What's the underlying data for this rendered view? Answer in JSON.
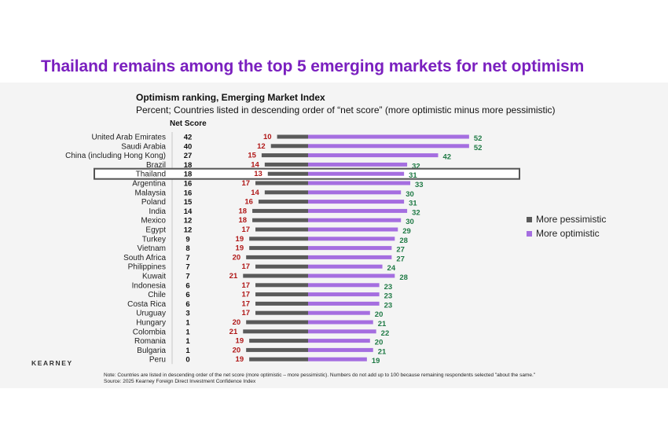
{
  "headline": "Thailand remains among the top 5 emerging markets for net optimism",
  "logo": "KEARNEY",
  "note": "Note: Countries are listed in descending order of the net score (more optimistic – more pessimistic). Numbers do not add up to 100 because remaining respondents selected \"about the same.\"",
  "source": "Source: 2025 Kearney Foreign Direct Investment Confidence Index",
  "colors": {
    "headline": "#7a1fbf",
    "pessimistic": "#5a5a5a",
    "optimistic": "#a56ee0",
    "pessimistic_label": "#b01818",
    "optimistic_label": "#1f7a45",
    "highlight_border": "#555555"
  },
  "chart_data": {
    "type": "bar",
    "orientation": "horizontal-diverging",
    "title": "Optimism ranking, Emerging Market Index",
    "subtitle": "Percent; Countries listed in descending order of “net score” (more optimistic minus more pessimistic)",
    "net_score_header": "Net Score",
    "highlighted_category": "Thailand",
    "legend_position": "right",
    "legend": [
      "More pessimistic",
      "More optimistic"
    ],
    "categories": [
      "United Arab Emirates",
      "Saudi Arabia",
      "China (including Hong Kong)",
      "Brazil",
      "Thailand",
      "Argentina",
      "Malaysia",
      "Poland",
      "India",
      "Mexico",
      "Egypt",
      "Turkey",
      "Vietnam",
      "South Africa",
      "Philippines",
      "Kuwait",
      "Indonesia",
      "Chile",
      "Costa Rica",
      "Uruguay",
      "Hungary",
      "Colombia",
      "Romania",
      "Bulgaria",
      "Peru"
    ],
    "net_score": [
      42,
      40,
      27,
      18,
      18,
      16,
      16,
      15,
      14,
      12,
      12,
      9,
      8,
      7,
      7,
      7,
      6,
      6,
      6,
      3,
      1,
      1,
      1,
      1,
      0
    ],
    "series": [
      {
        "name": "More pessimistic",
        "values": [
          10,
          12,
          15,
          14,
          13,
          17,
          14,
          16,
          18,
          18,
          17,
          19,
          19,
          20,
          17,
          21,
          17,
          17,
          17,
          17,
          20,
          21,
          19,
          20,
          19
        ]
      },
      {
        "name": "More optimistic",
        "values": [
          52,
          52,
          42,
          32,
          31,
          33,
          30,
          31,
          32,
          30,
          29,
          28,
          27,
          27,
          24,
          28,
          23,
          23,
          23,
          20,
          21,
          22,
          20,
          21,
          19
        ]
      }
    ]
  }
}
